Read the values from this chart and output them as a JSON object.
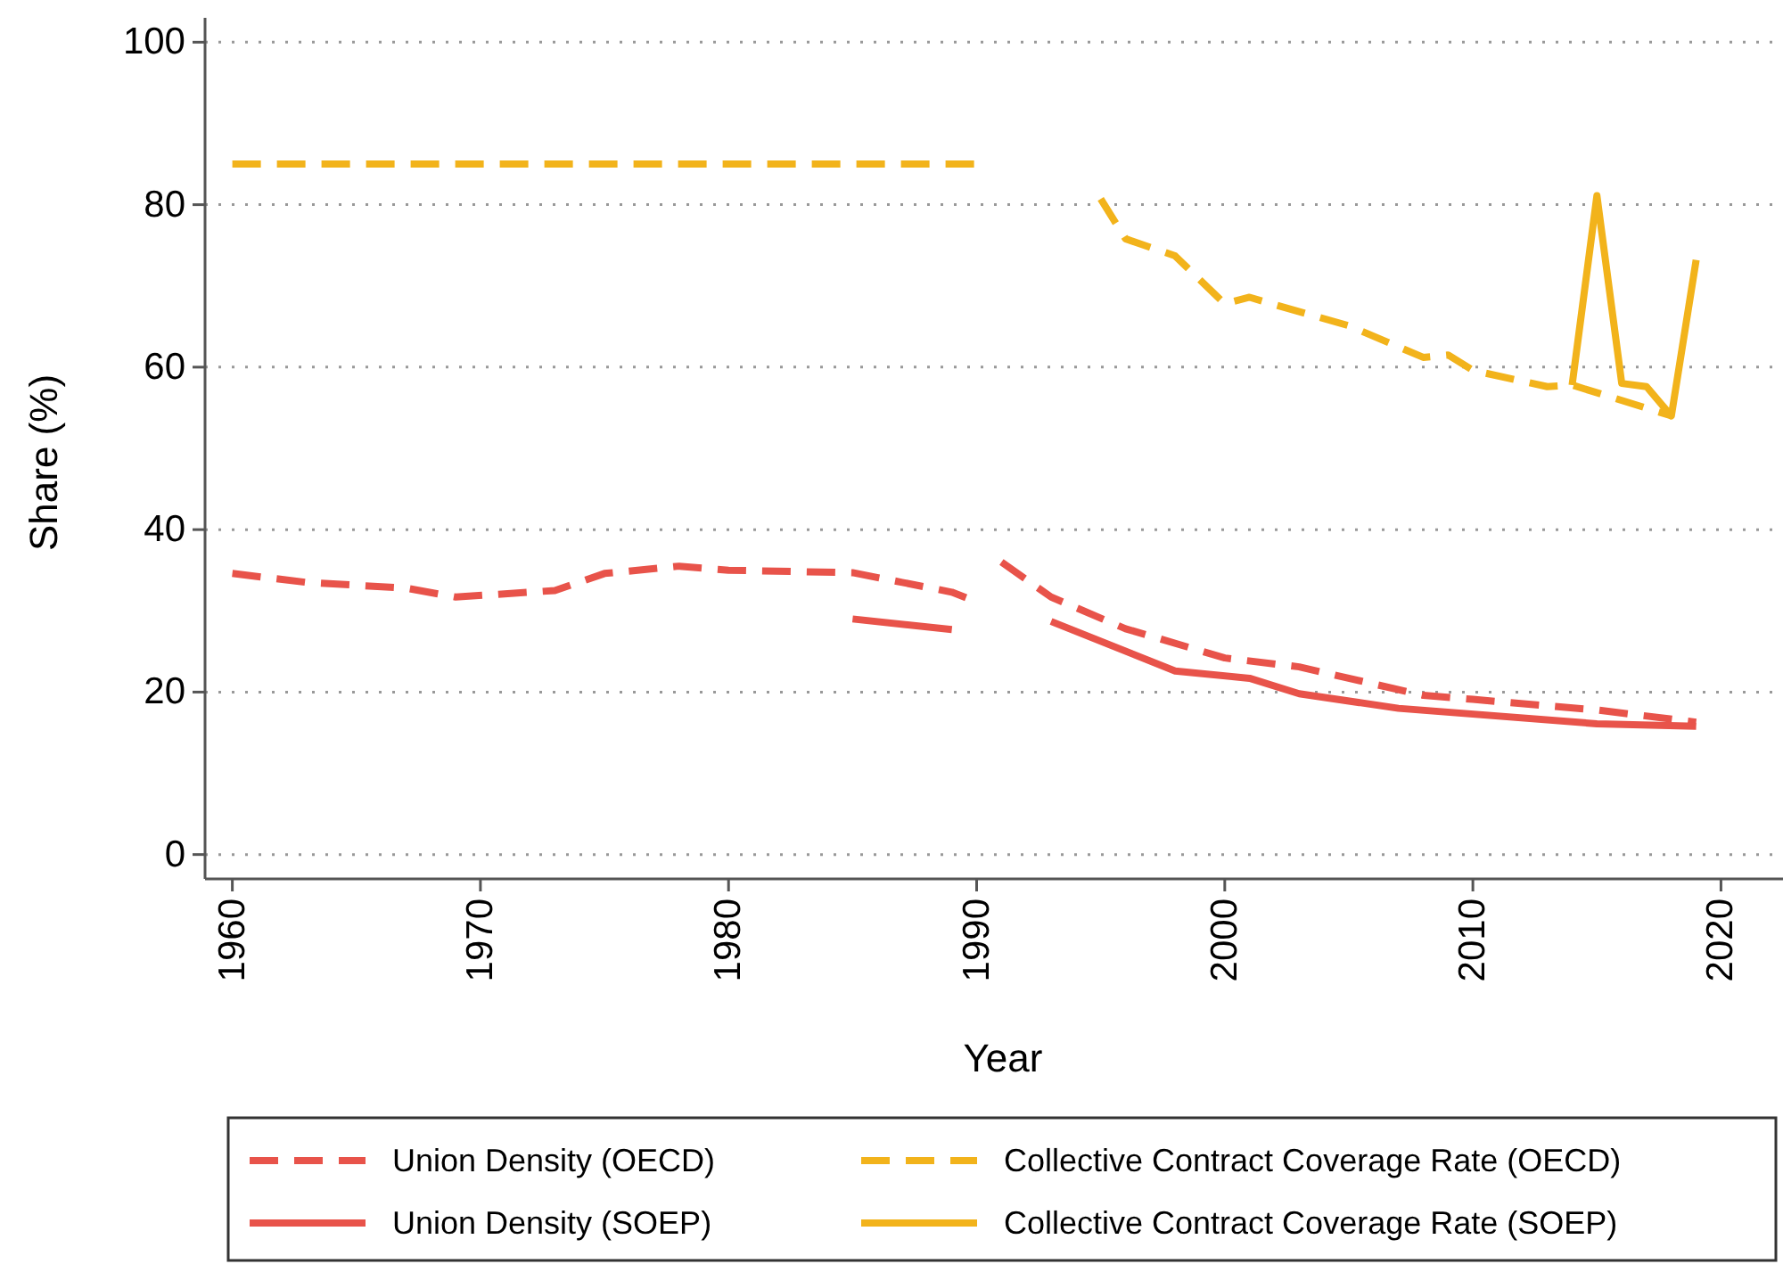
{
  "chart_data": {
    "type": "line",
    "xlabel": "Year",
    "ylabel": "Share (%)",
    "xlim": [
      1958.9,
      2022.5
    ],
    "ylim": [
      -3,
      103
    ],
    "xticks": [
      1960,
      1970,
      1980,
      1990,
      2000,
      2010,
      2020
    ],
    "yticks": [
      0,
      20,
      40,
      60,
      80,
      100
    ],
    "grid": "y",
    "legend": "bottom",
    "series": [
      {
        "name": "Union Density (OECD)",
        "color": "#e8534a",
        "line_style": "dashed",
        "x": [
          1960,
          1963,
          1967,
          1969,
          1972,
          1973,
          1975,
          1978,
          1980,
          1985,
          1987,
          1989,
          1990,
          1990.5,
          1991,
          1993,
          1996,
          2000,
          2003,
          2008,
          2010,
          2015,
          2019
        ],
        "values": [
          34.6,
          33.5,
          32.8,
          31.7,
          32.3,
          32.5,
          34.6,
          35.5,
          35.0,
          34.7,
          33.5,
          32.3,
          31.1,
          null,
          36.0,
          31.7,
          27.8,
          24.2,
          23.1,
          19.6,
          19.1,
          17.8,
          16.3
        ]
      },
      {
        "name": "Collective Contract Coverage Rate (OECD)",
        "color": "#f2b31b",
        "line_style": "dashed",
        "x": [
          1960,
          1990,
          1992,
          1995,
          1996,
          1998,
          2000,
          2001,
          2002,
          2005,
          2008,
          2009,
          2010,
          2013,
          2014,
          2018
        ],
        "values": [
          85,
          85,
          null,
          80.7,
          75.8,
          73.7,
          67.8,
          68.6,
          67.7,
          65.1,
          61.2,
          61.5,
          59.6,
          57.6,
          57.8,
          54.0
        ]
      },
      {
        "name": "Union Density (SOEP)",
        "color": "#e8534a",
        "line_style": "solid",
        "x": [
          1985,
          1989,
          1991,
          1993,
          1998,
          2001,
          2003,
          2007,
          2015,
          2019
        ],
        "values": [
          29.0,
          27.7,
          null,
          28.7,
          22.6,
          21.7,
          19.8,
          18.0,
          16.1,
          15.8
        ]
      },
      {
        "name": "Collective Contract Coverage Rate (SOEP)",
        "color": "#f2b31b",
        "line_style": "solid",
        "x": [
          2014,
          2015,
          2016,
          2017,
          2018,
          2019
        ],
        "values": [
          57.8,
          81.1,
          58.0,
          57.6,
          54.0,
          73.2
        ]
      }
    ]
  }
}
